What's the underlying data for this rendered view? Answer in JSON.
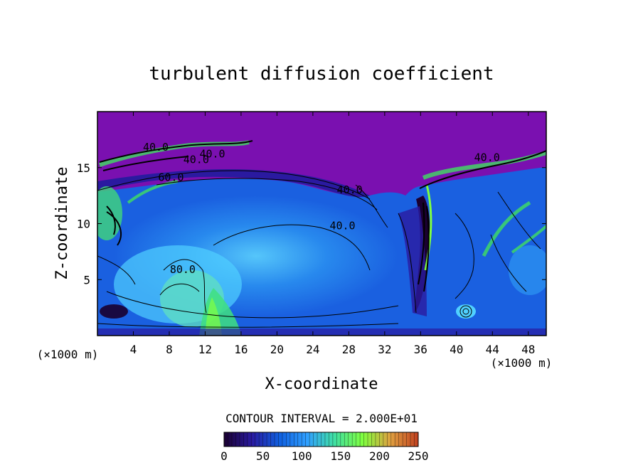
{
  "chart_data": {
    "type": "heatmap",
    "title": "turbulent diffusion coefficient",
    "xlabel": "X-coordinate",
    "ylabel": "Z-coordinate",
    "x_unit_left": "(×1000 m)",
    "x_unit_right": "(×1000 m)",
    "xlim": [
      0,
      50
    ],
    "ylim": [
      0,
      20
    ],
    "x_ticks": [
      "4",
      "8",
      "12",
      "16",
      "20",
      "24",
      "28",
      "32",
      "36",
      "40",
      "44",
      "48"
    ],
    "y_ticks": [
      "5",
      "10",
      "15"
    ],
    "contour_interval_text": "CONTOUR INTERVAL = 2.000E+01",
    "contour_labels": [
      {
        "text": "40.0",
        "x": 6.5,
        "y": 16.5
      },
      {
        "text": "40.0",
        "x": 12.8,
        "y": 15.9
      },
      {
        "text": "40.0",
        "x": 11.0,
        "y": 15.4
      },
      {
        "text": "60.0",
        "x": 8.2,
        "y": 13.8
      },
      {
        "text": "40.0",
        "x": 28.1,
        "y": 12.7
      },
      {
        "text": "40.0",
        "x": 27.3,
        "y": 9.5
      },
      {
        "text": "80.0",
        "x": 9.5,
        "y": 5.6
      },
      {
        "text": "40.0",
        "x": 43.4,
        "y": 15.6
      }
    ],
    "colorbar": {
      "min": 0,
      "max": 250,
      "tick_labels": [
        "0",
        "50",
        "100",
        "150",
        "200",
        "250"
      ],
      "colors": [
        "#1a0030",
        "#2a1aa0",
        "#1060e0",
        "#30a0ff",
        "#40e0a0",
        "#80ff40",
        "#e0a040",
        "#c04020"
      ]
    },
    "background_color": "#7a10b0"
  }
}
